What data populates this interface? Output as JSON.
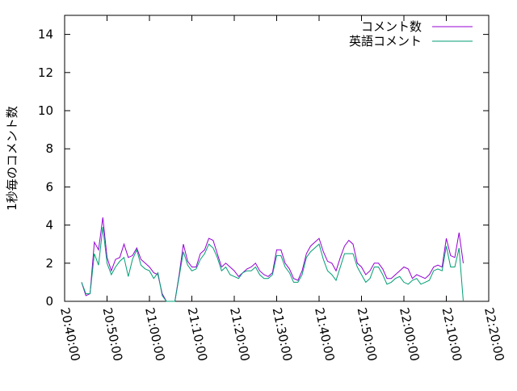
{
  "chart_data": {
    "type": "line",
    "ylabel": "1秒毎のコメント数",
    "x": [
      "20:44:00",
      "20:45:00",
      "20:46:00",
      "20:47:00",
      "20:48:00",
      "20:49:00",
      "20:50:00",
      "20:51:00",
      "20:52:00",
      "20:53:00",
      "20:54:00",
      "20:55:00",
      "20:56:00",
      "20:57:00",
      "20:58:00",
      "20:59:00",
      "21:00:00",
      "21:01:00",
      "21:02:00",
      "21:03:00",
      "21:04:00",
      "21:05:00",
      "21:06:00",
      "21:07:00",
      "21:08:00",
      "21:09:00",
      "21:10:00",
      "21:11:00",
      "21:12:00",
      "21:13:00",
      "21:14:00",
      "21:15:00",
      "21:16:00",
      "21:17:00",
      "21:18:00",
      "21:19:00",
      "21:20:00",
      "21:21:00",
      "21:22:00",
      "21:23:00",
      "21:24:00",
      "21:25:00",
      "21:26:00",
      "21:27:00",
      "21:28:00",
      "21:29:00",
      "21:30:00",
      "21:31:00",
      "21:32:00",
      "21:33:00",
      "21:34:00",
      "21:35:00",
      "21:36:00",
      "21:37:00",
      "21:38:00",
      "21:39:00",
      "21:40:00",
      "21:41:00",
      "21:42:00",
      "21:43:00",
      "21:44:00",
      "21:45:00",
      "21:46:00",
      "21:47:00",
      "21:48:00",
      "21:49:00",
      "21:50:00",
      "21:51:00",
      "21:52:00",
      "21:53:00",
      "21:54:00",
      "21:55:00",
      "21:56:00",
      "21:57:00",
      "21:58:00",
      "21:59:00",
      "22:00:00",
      "22:01:00",
      "22:02:00",
      "22:03:00",
      "22:04:00",
      "22:05:00",
      "22:06:00",
      "22:07:00",
      "22:08:00",
      "22:09:00",
      "22:10:00",
      "22:11:00",
      "22:12:00",
      "22:13:00",
      "22:14:00"
    ],
    "series": [
      {
        "name": "コメント数",
        "color": "#9400d3",
        "values": [
          1.0,
          0.3,
          0.4,
          3.1,
          2.7,
          4.4,
          2.3,
          1.6,
          2.2,
          2.3,
          3.0,
          2.3,
          2.4,
          2.8,
          2.2,
          2.0,
          1.8,
          1.5,
          1.4,
          0.4,
          0,
          0,
          0,
          1.4,
          3.0,
          2.1,
          1.8,
          1.8,
          2.5,
          2.7,
          3.3,
          3.2,
          2.5,
          1.8,
          2.0,
          1.8,
          1.6,
          1.3,
          1.5,
          1.7,
          1.8,
          2.0,
          1.6,
          1.4,
          1.3,
          1.5,
          2.7,
          2.7,
          2.0,
          1.7,
          1.2,
          1.1,
          1.6,
          2.5,
          2.9,
          3.1,
          3.3,
          2.6,
          2.1,
          2.0,
          1.6,
          2.3,
          2.9,
          3.2,
          3.0,
          2.0,
          1.8,
          1.4,
          1.6,
          2.0,
          2.0,
          1.7,
          1.2,
          1.2,
          1.4,
          1.6,
          1.8,
          1.7,
          1.2,
          1.4,
          1.3,
          1.2,
          1.4,
          1.8,
          1.9,
          1.8,
          3.3,
          2.4,
          2.3,
          3.6,
          2.0
        ]
      },
      {
        "name": "英語コメント",
        "color": "#009e73",
        "values": [
          1.0,
          0.4,
          0.4,
          2.5,
          1.9,
          3.9,
          2.0,
          1.4,
          1.8,
          2.1,
          2.3,
          1.3,
          2.2,
          2.7,
          1.9,
          1.7,
          1.6,
          1.2,
          1.5,
          0.3,
          0,
          0,
          0,
          1.3,
          2.6,
          1.9,
          1.6,
          1.7,
          2.2,
          2.5,
          3.0,
          2.8,
          2.3,
          1.6,
          1.8,
          1.4,
          1.3,
          1.2,
          1.5,
          1.6,
          1.6,
          1.8,
          1.4,
          1.2,
          1.2,
          1.4,
          2.4,
          2.4,
          1.8,
          1.5,
          1.0,
          1.0,
          1.4,
          2.3,
          2.6,
          2.8,
          3.0,
          2.2,
          1.6,
          1.4,
          1.1,
          1.8,
          2.5,
          2.5,
          2.5,
          1.8,
          1.4,
          1.0,
          1.2,
          1.8,
          1.8,
          1.4,
          0.9,
          1.0,
          1.2,
          1.3,
          1.0,
          0.9,
          1.1,
          1.2,
          0.9,
          1.0,
          1.1,
          1.6,
          1.7,
          1.6,
          2.9,
          1.8,
          1.8,
          2.8,
          0.0
        ]
      }
    ],
    "xlim": [
      "20:40:00",
      "22:20:00"
    ],
    "xticks": [
      "20:40:00",
      "20:50:00",
      "21:00:00",
      "21:10:00",
      "21:20:00",
      "21:30:00",
      "21:40:00",
      "21:50:00",
      "22:00:00",
      "22:10:00",
      "22:20:00"
    ],
    "ylim": [
      0,
      15
    ],
    "yticks": [
      0,
      2,
      4,
      6,
      8,
      10,
      12,
      14
    ],
    "legend": "top-right"
  }
}
